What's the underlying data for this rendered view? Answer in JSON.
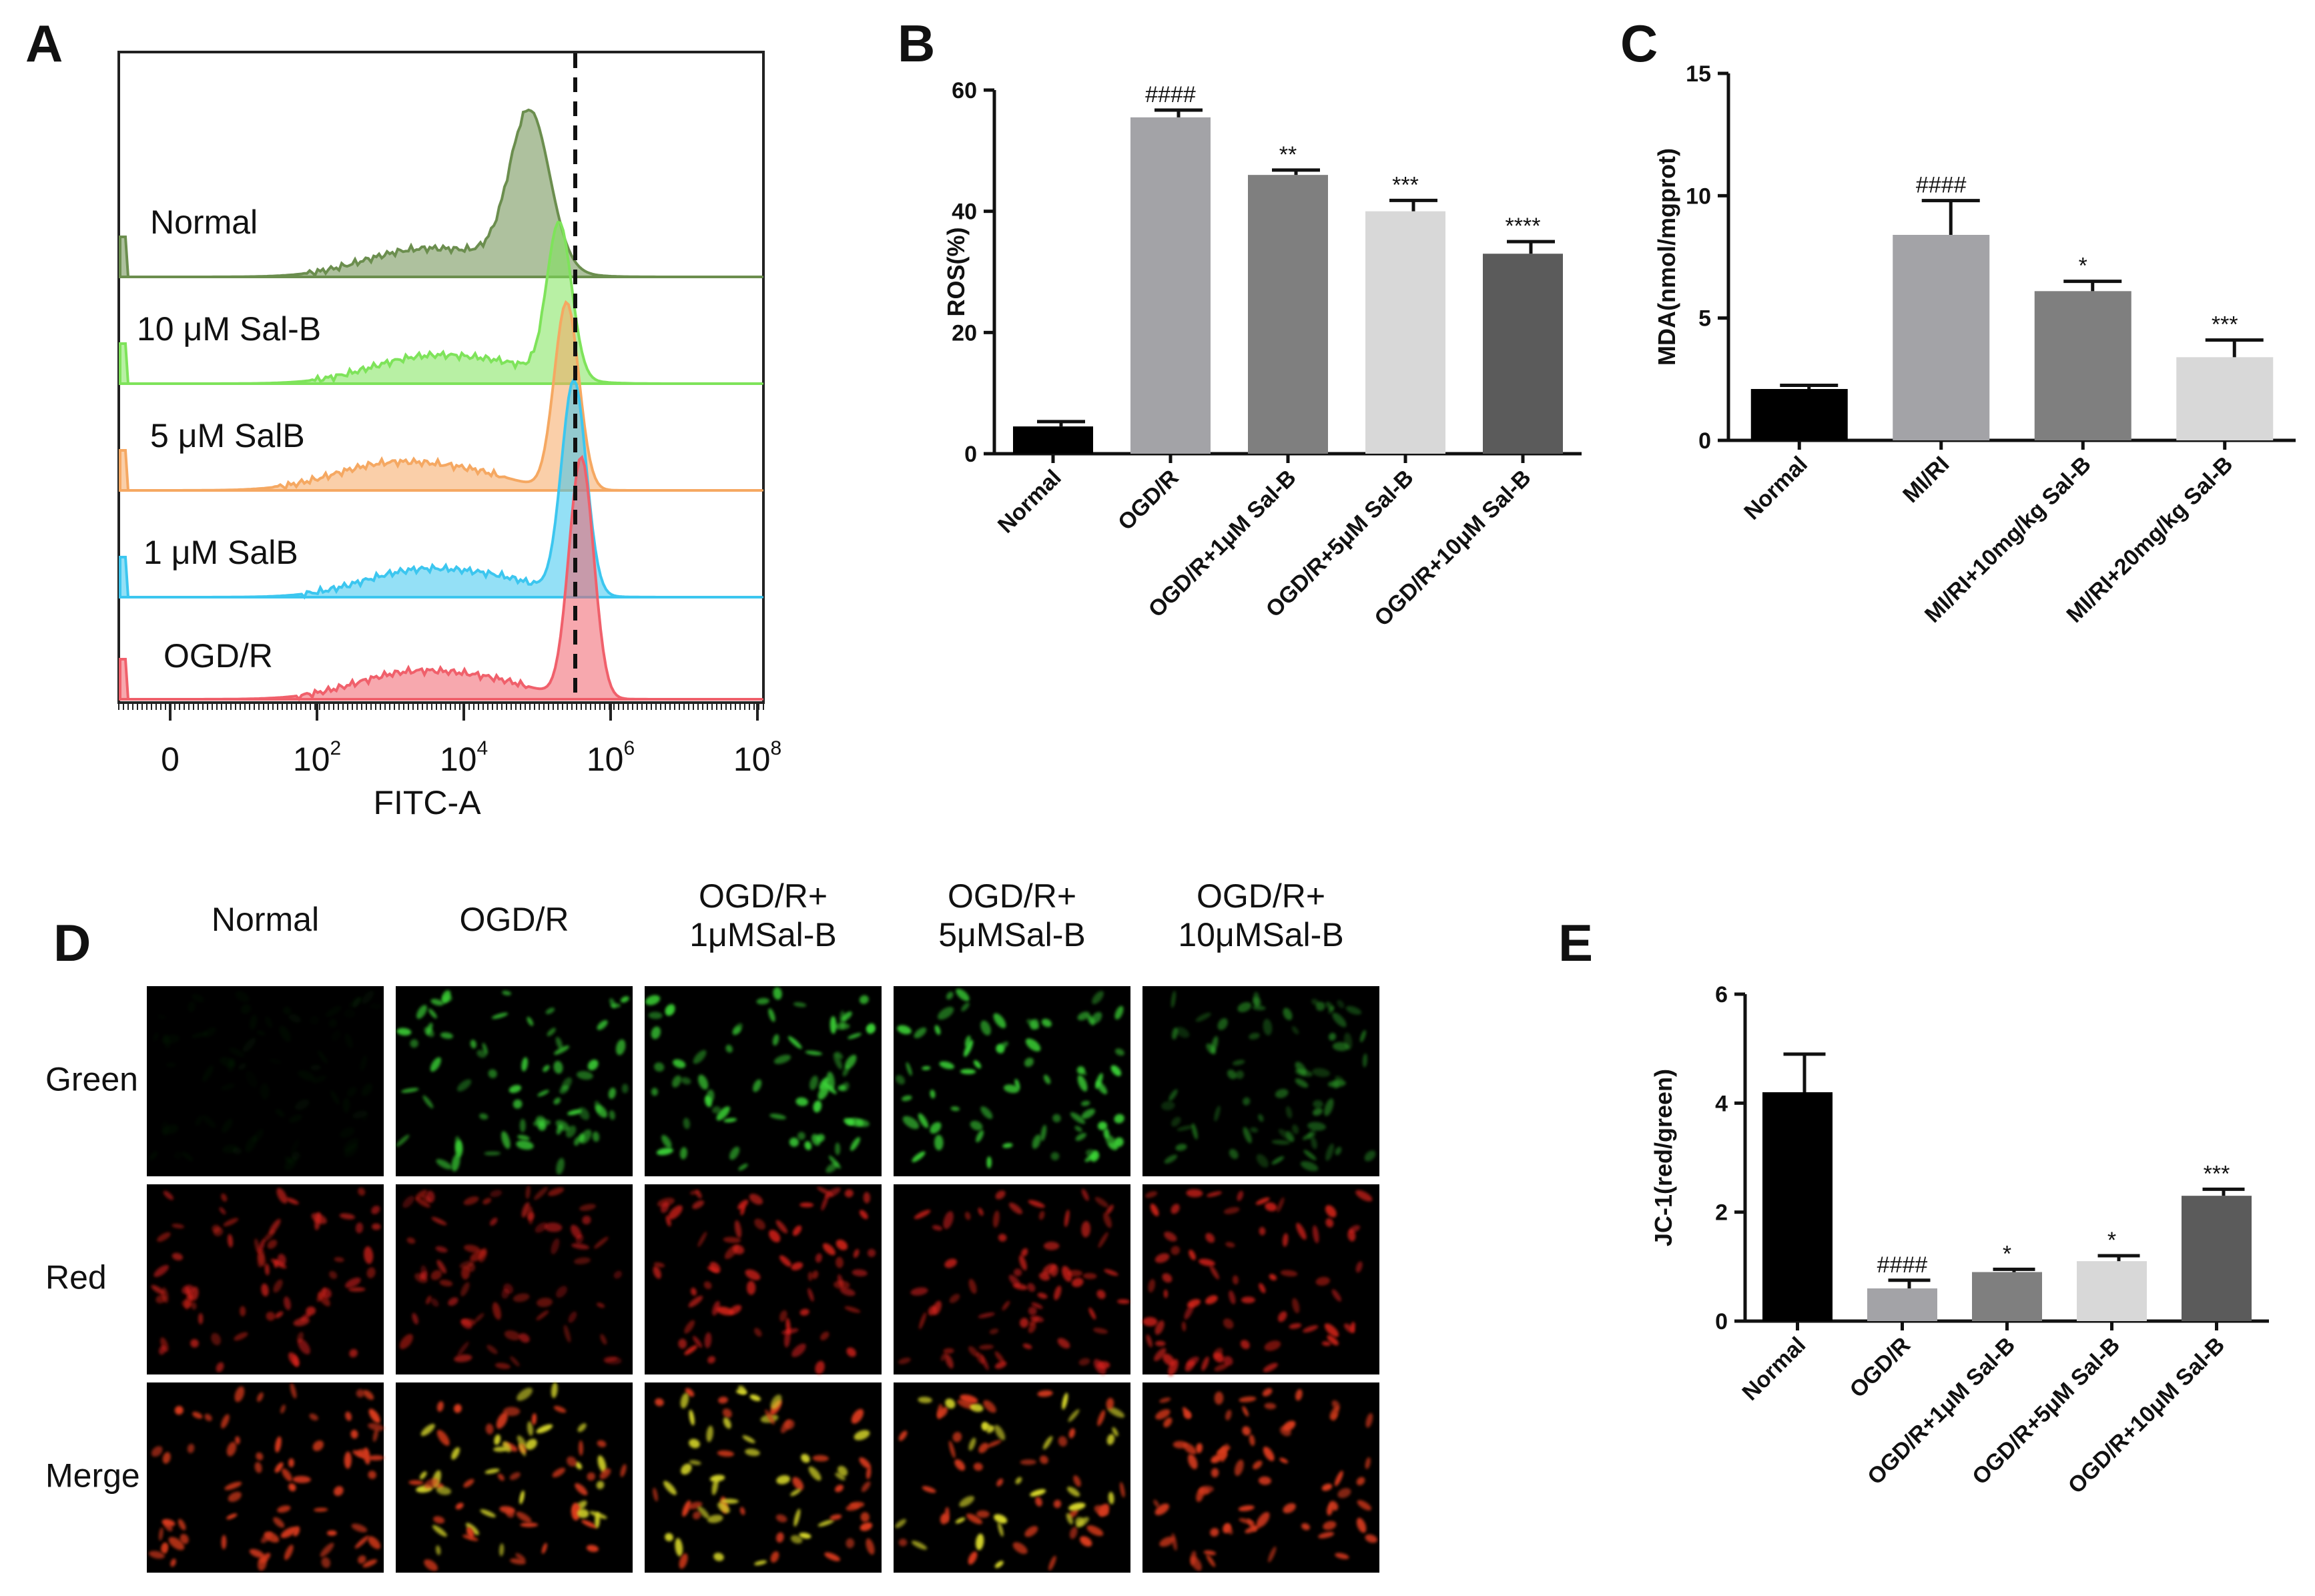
{
  "panels": {
    "a": "A",
    "b": "B",
    "c": "C",
    "d": "D",
    "e": "E"
  },
  "chart_data": [
    {
      "type": "area",
      "panel": "A",
      "xlabel": "FITC-A",
      "x_scale": "log",
      "x_tick_labels": [
        "0",
        "10^2",
        "10^4",
        "10^6",
        "10^8"
      ],
      "reference_line": "dashed vertical line near the OGD/R peak",
      "series": [
        {
          "name": "Normal",
          "color": "#6b8e4e",
          "peak_log10": 4.9,
          "shoulder_log10": 3.4
        },
        {
          "name": "10 μM Sal-B",
          "color": "#7ee35a",
          "peak_log10": 5.3,
          "shoulder_log10": 3.5
        },
        {
          "name": "5 μM SalB",
          "color": "#f5a862",
          "peak_log10": 5.4,
          "shoulder_log10": 3.0
        },
        {
          "name": "1 μM SalB",
          "color": "#3cc6ef",
          "peak_log10": 5.5,
          "shoulder_log10": 3.4
        },
        {
          "name": "OGD/R",
          "color": "#f0606b",
          "peak_log10": 5.6,
          "shoulder_log10": 3.3
        }
      ]
    },
    {
      "type": "bar",
      "panel": "B",
      "ylabel": "ROS(%)",
      "ylim": [
        0,
        60
      ],
      "yticks": [
        "0",
        "20",
        "40",
        "60"
      ],
      "categories": [
        "Normal",
        "OGD/R",
        "OGD/R+1μM Sal-B",
        "OGD/R+5μM Sal-B",
        "OGD/R+10μM Sal-B"
      ],
      "values": [
        4.5,
        55.5,
        46,
        40,
        33
      ],
      "errors": [
        0.8,
        1.2,
        0.8,
        1.8,
        2.0
      ],
      "annotations": [
        "",
        "####",
        "**",
        "***",
        "****"
      ],
      "colors": [
        "#000000",
        "#a3a3a7",
        "#7f7f7f",
        "#d8d8d8",
        "#5b5b5b"
      ]
    },
    {
      "type": "bar",
      "panel": "C",
      "ylabel": "MDA(nmol/mgprot)",
      "ylim": [
        0,
        15
      ],
      "yticks": [
        "0",
        "5",
        "10",
        "15"
      ],
      "categories": [
        "Normal",
        "MI/RI",
        "MI/RI+10mg/kg Sal-B",
        "MI/RI+20mg/kg Sal-B"
      ],
      "values": [
        2.1,
        8.4,
        6.1,
        3.4
      ],
      "errors": [
        0.15,
        1.4,
        0.4,
        0.7
      ],
      "annotations": [
        "",
        "####",
        "*",
        "***"
      ],
      "colors": [
        "#000000",
        "#a3a3a7",
        "#7f7f7f",
        "#d8d8d8"
      ]
    },
    {
      "type": "bar",
      "panel": "E",
      "ylabel": "JC-1(red/green)",
      "ylim": [
        0,
        6
      ],
      "yticks": [
        "0",
        "2",
        "4",
        "6"
      ],
      "categories": [
        "Normal",
        "OGD/R",
        "OGD/R+1μM Sal-B",
        "OGD/R+5μM Sal-B",
        "OGD/R+10μM Sal-B"
      ],
      "values": [
        4.2,
        0.6,
        0.9,
        1.1,
        2.3
      ],
      "errors": [
        0.7,
        0.15,
        0.05,
        0.1,
        0.12
      ],
      "annotations": [
        "",
        "####",
        "*",
        "*",
        "***"
      ],
      "colors": [
        "#000000",
        "#a3a3a7",
        "#7f7f7f",
        "#d8d8d8",
        "#5b5b5b"
      ]
    }
  ],
  "micrographs": {
    "columns": [
      "Normal",
      "OGD/R",
      "OGD/R+\n1μMSal-B",
      "OGD/R+\n5μMSal-B",
      "OGD/R+\n10μMSal-B"
    ],
    "rows": [
      "Green",
      "Red",
      "Merge"
    ],
    "green_intensity": [
      0.05,
      0.85,
      0.9,
      0.9,
      0.45
    ],
    "red_intensity": [
      0.7,
      0.6,
      0.85,
      0.75,
      0.85
    ]
  }
}
